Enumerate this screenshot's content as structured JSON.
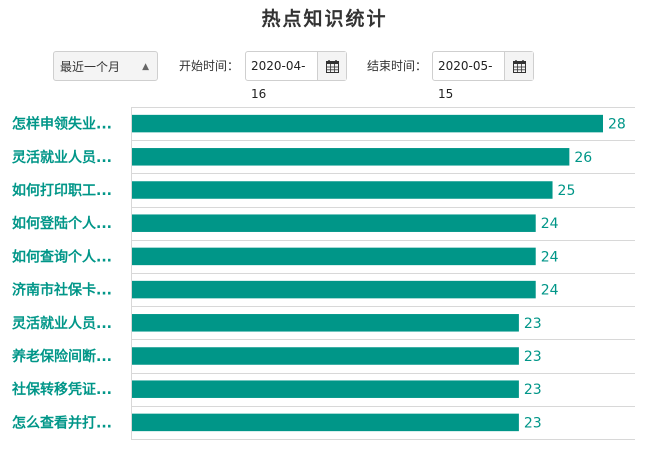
{
  "title": "热点知识统计",
  "filters": {
    "range_select": "最近一个月",
    "start_label": "开始时间：",
    "start_value": "2020-04-16",
    "end_label": "结束时间：",
    "end_value": "2020-05-15"
  },
  "colors": {
    "bar": "#009688",
    "grid": "#d8d8d8",
    "accent": "#009688"
  },
  "chart_data": {
    "type": "bar",
    "orientation": "horizontal",
    "categories": [
      "怎样申领失业...",
      "灵活就业人员...",
      "如何打印职工...",
      "如何登陆个人...",
      "如何查询个人...",
      "济南市社保卡...",
      "灵活就业人员...",
      "养老保险间断...",
      "社保转移凭证...",
      "怎么查看并打..."
    ],
    "values": [
      28,
      26,
      25,
      24,
      24,
      24,
      23,
      23,
      23,
      23
    ],
    "xlim": [
      0,
      30
    ],
    "grid": true,
    "data_labels": true
  }
}
